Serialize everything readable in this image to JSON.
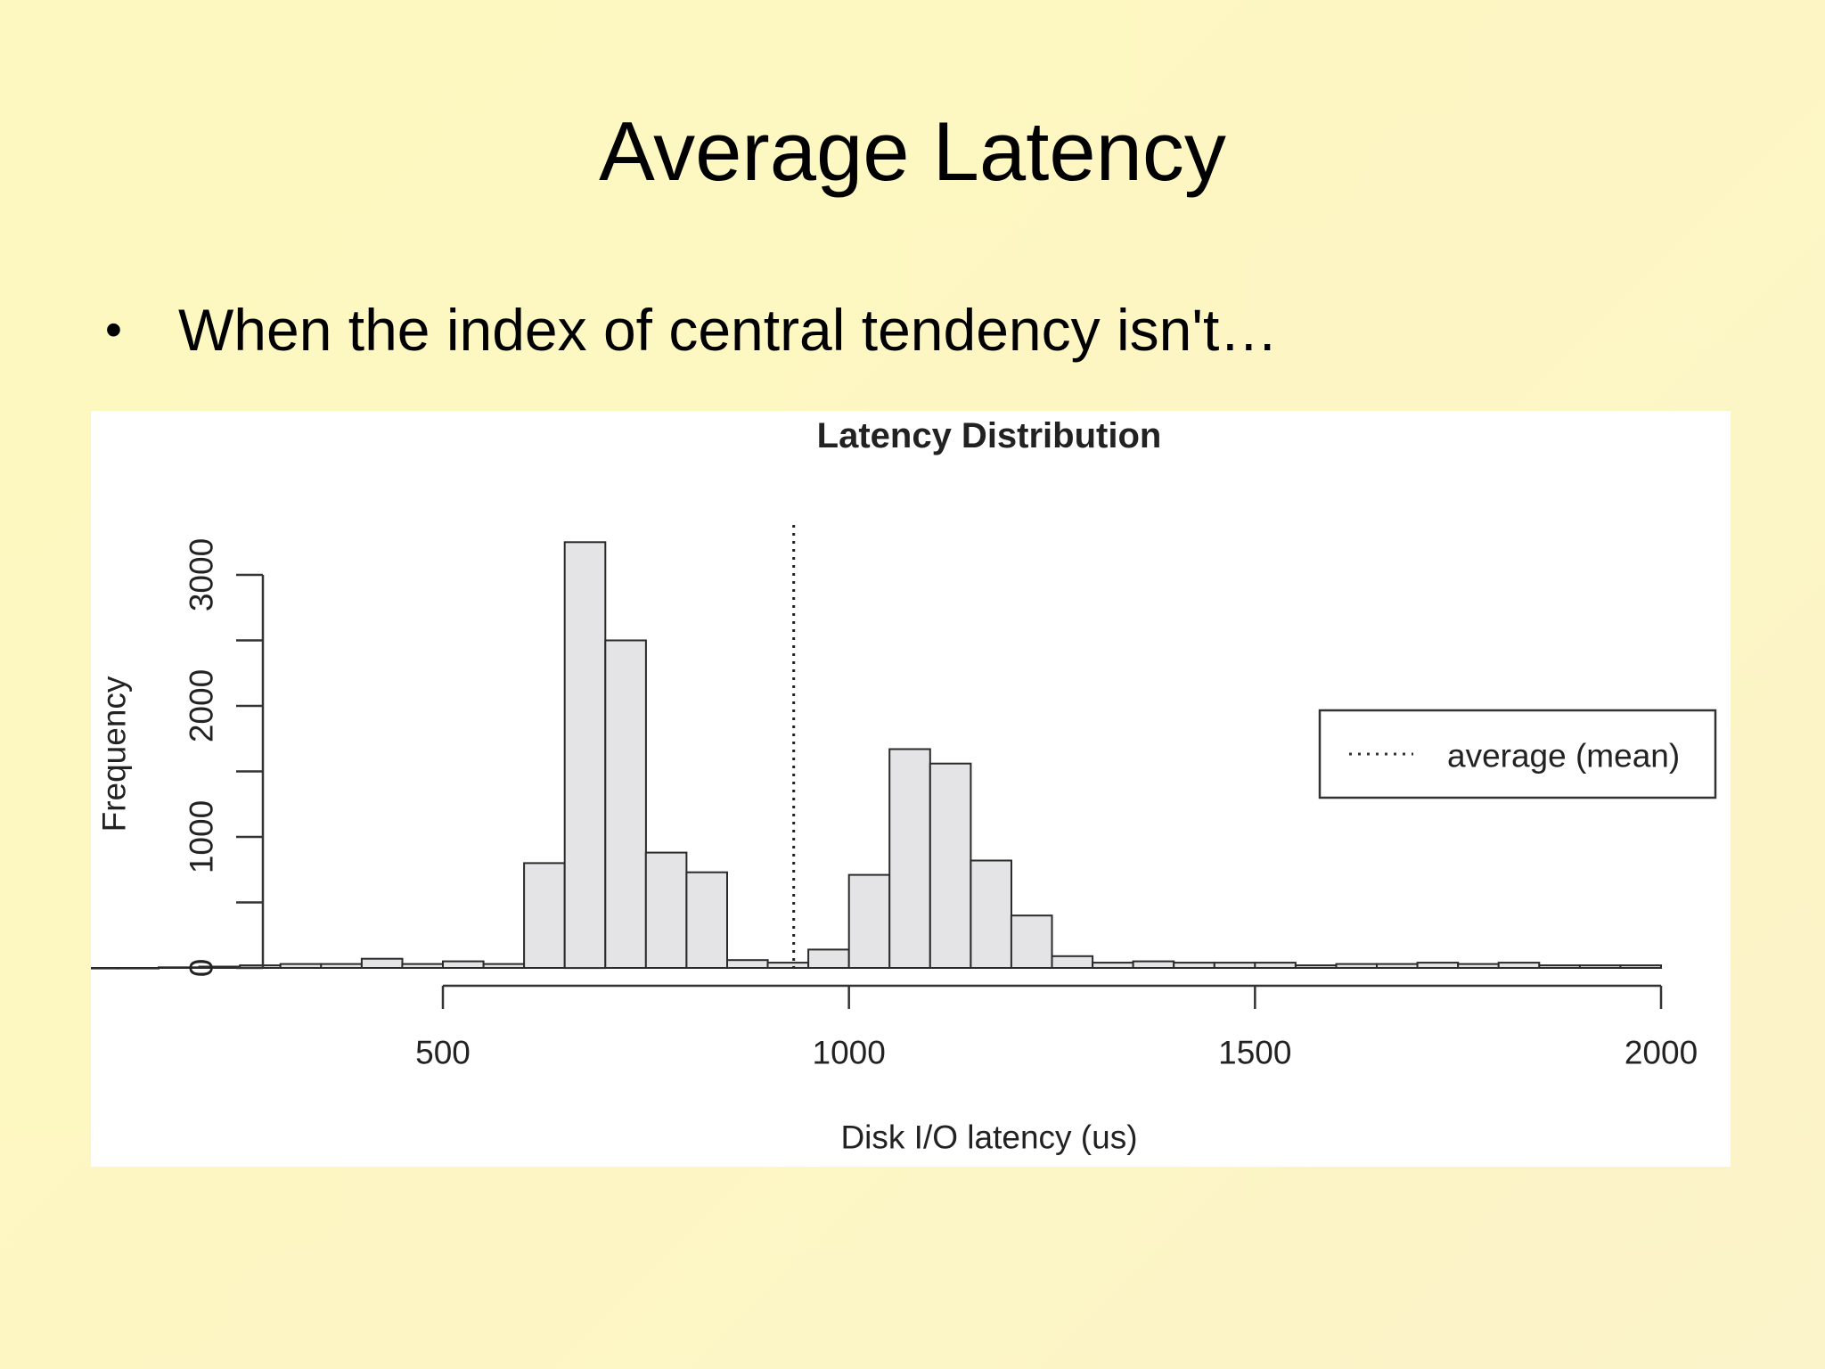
{
  "slide": {
    "title": "Average Latency",
    "bullet": "When the index of central tendency isn't…"
  },
  "colors": {
    "background": "#fdf8bf",
    "bar_fill": "#e4e4e6",
    "bar_stroke": "#2a2a2a"
  },
  "chart_data": {
    "type": "bar",
    "title": "Latency Distribution",
    "xlabel": "Disk I/O latency (us)",
    "ylabel": "Frequency",
    "xlim": [
      -220,
      2000
    ],
    "ylim": [
      0,
      3300
    ],
    "x_ticks": [
      500,
      1000,
      1500,
      2000
    ],
    "x_tick_labels": [
      "500",
      "1000",
      "1500",
      "2000"
    ],
    "y_ticks": [
      0,
      500,
      1000,
      1500,
      2000,
      2500,
      3000
    ],
    "y_tick_labels": [
      "0",
      "1000",
      "2000",
      "3000"
    ],
    "y_labeled_ticks": [
      0,
      1000,
      2000,
      3000
    ],
    "bin_width": 50,
    "bins": [
      {
        "start": -150,
        "value": 5
      },
      {
        "start": -100,
        "value": 5
      },
      {
        "start": -50,
        "value": 3
      },
      {
        "start": 0,
        "value": 3
      },
      {
        "start": 50,
        "value": 0
      },
      {
        "start": 100,
        "value": 0
      },
      {
        "start": 150,
        "value": 5
      },
      {
        "start": 200,
        "value": 10
      },
      {
        "start": 250,
        "value": 20
      },
      {
        "start": 300,
        "value": 30
      },
      {
        "start": 350,
        "value": 30
      },
      {
        "start": 400,
        "value": 70
      },
      {
        "start": 450,
        "value": 30
      },
      {
        "start": 500,
        "value": 50
      },
      {
        "start": 550,
        "value": 30
      },
      {
        "start": 600,
        "value": 800
      },
      {
        "start": 650,
        "value": 3250
      },
      {
        "start": 700,
        "value": 2500
      },
      {
        "start": 750,
        "value": 880
      },
      {
        "start": 800,
        "value": 730
      },
      {
        "start": 850,
        "value": 60
      },
      {
        "start": 900,
        "value": 40
      },
      {
        "start": 950,
        "value": 140
      },
      {
        "start": 1000,
        "value": 710
      },
      {
        "start": 1050,
        "value": 1670
      },
      {
        "start": 1100,
        "value": 1560
      },
      {
        "start": 1150,
        "value": 820
      },
      {
        "start": 1200,
        "value": 400
      },
      {
        "start": 1250,
        "value": 90
      },
      {
        "start": 1300,
        "value": 40
      },
      {
        "start": 1350,
        "value": 50
      },
      {
        "start": 1400,
        "value": 40
      },
      {
        "start": 1450,
        "value": 40
      },
      {
        "start": 1500,
        "value": 40
      },
      {
        "start": 1550,
        "value": 20
      },
      {
        "start": 1600,
        "value": 30
      },
      {
        "start": 1650,
        "value": 30
      },
      {
        "start": 1700,
        "value": 40
      },
      {
        "start": 1750,
        "value": 30
      },
      {
        "start": 1800,
        "value": 40
      },
      {
        "start": 1850,
        "value": 20
      },
      {
        "start": 1900,
        "value": 20
      },
      {
        "start": 1950,
        "value": 20
      }
    ],
    "mean_line": {
      "x": 932,
      "style": "dotted"
    },
    "legend": {
      "label": "average (mean)",
      "placement": "right",
      "line_style": "dotted"
    }
  }
}
